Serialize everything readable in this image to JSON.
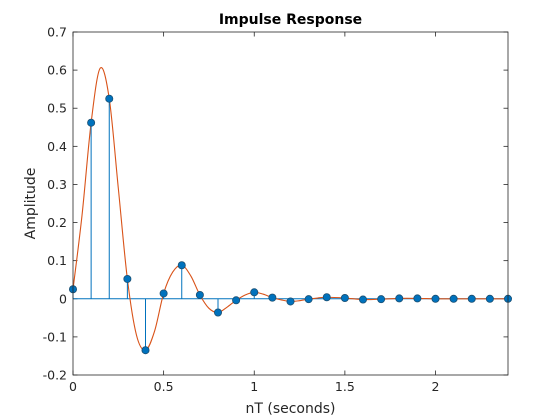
{
  "chart_data": {
    "type": "scatter",
    "title": "Impulse Response",
    "xlabel": "nT (seconds)",
    "ylabel": "Amplitude",
    "xlim": [
      0,
      2.4
    ],
    "ylim": [
      -0.2,
      0.7
    ],
    "x_ticks": [
      0,
      0.5,
      1,
      1.5,
      2
    ],
    "y_ticks": [
      -0.2,
      -0.1,
      0,
      0.1,
      0.2,
      0.3,
      0.4,
      0.5,
      0.6,
      0.7
    ],
    "x_tick_labels": [
      "0",
      "0.5",
      "1",
      "1.5",
      "2"
    ],
    "y_tick_labels": [
      "-0.2",
      "-0.1",
      "0",
      "0.1",
      "0.2",
      "0.3",
      "0.4",
      "0.5",
      "0.6",
      "0.7"
    ],
    "grid": false,
    "stem_color": "#0072BD",
    "curve_color": "#D95319",
    "series": [
      {
        "kind": "stem",
        "x": [
          0,
          0.1,
          0.2,
          0.3,
          0.4,
          0.5,
          0.6,
          0.7,
          0.8,
          0.9,
          1.0,
          1.1,
          1.2,
          1.3,
          1.4,
          1.5,
          1.6,
          1.7,
          1.8,
          1.9,
          2.0,
          2.1,
          2.2,
          2.3,
          2.4
        ],
        "values": [
          0.025,
          0.462,
          0.525,
          0.052,
          -0.135,
          0.014,
          0.088,
          0.01,
          -0.036,
          -0.004,
          0.017,
          0.003,
          -0.007,
          -0.001,
          0.004,
          0.002,
          -0.002,
          -0.001,
          0.001,
          0.001,
          0.0,
          0.0,
          0.0,
          0.0,
          0.0
        ]
      },
      {
        "kind": "curve",
        "x": [
          0,
          0.05,
          0.1,
          0.15,
          0.2,
          0.25,
          0.3,
          0.35,
          0.4,
          0.45,
          0.5,
          0.55,
          0.6,
          0.65,
          0.7,
          0.75,
          0.8,
          0.85,
          0.9,
          0.95,
          1.0,
          1.05,
          1.1,
          1.15,
          1.2,
          1.25,
          1.3,
          1.35,
          1.4,
          1.5,
          1.6,
          1.7,
          1.8,
          1.9,
          2.0,
          2.1,
          2.2,
          2.3,
          2.4
        ],
        "values": [
          0.025,
          0.22,
          0.462,
          0.605,
          0.525,
          0.29,
          0.052,
          -0.095,
          -0.135,
          -0.085,
          0.014,
          0.07,
          0.088,
          0.06,
          0.01,
          -0.025,
          -0.036,
          -0.022,
          -0.004,
          0.01,
          0.017,
          0.012,
          0.003,
          -0.003,
          -0.007,
          -0.005,
          -0.001,
          0.002,
          0.004,
          0.002,
          -0.002,
          -0.001,
          0.001,
          0.001,
          0.0,
          0.0,
          0.0,
          0.0,
          0.0
        ]
      }
    ]
  }
}
